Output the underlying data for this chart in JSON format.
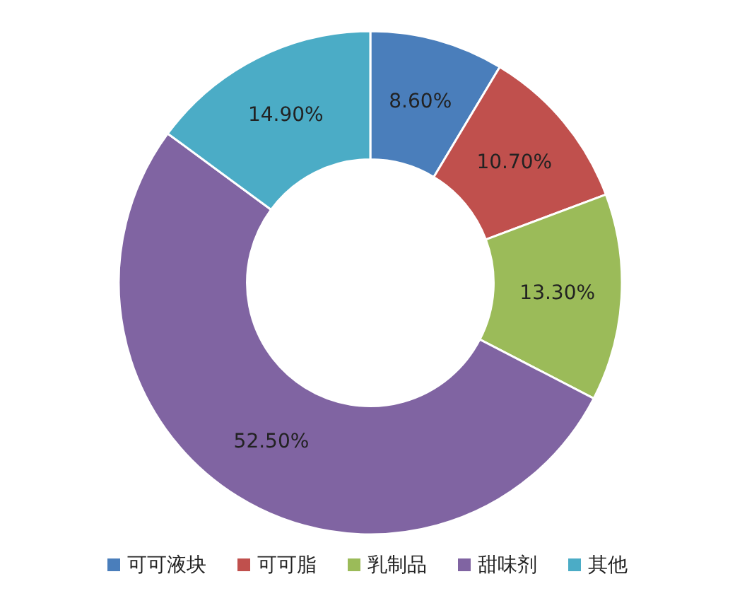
{
  "chart_data": {
    "type": "donut",
    "categories": [
      "可可液块",
      "可可脂",
      "乳制品",
      "甜味剂",
      "其他"
    ],
    "values": [
      8.6,
      10.7,
      13.3,
      52.5,
      14.9
    ],
    "colors": [
      "#4a7ebb",
      "#c0504d",
      "#9bbb59",
      "#8064a2",
      "#4bacc6"
    ],
    "value_labels": [
      "8.60%",
      "10.70%",
      "13.30%",
      "52.50%",
      "14.90%"
    ],
    "legend": "bottom"
  }
}
